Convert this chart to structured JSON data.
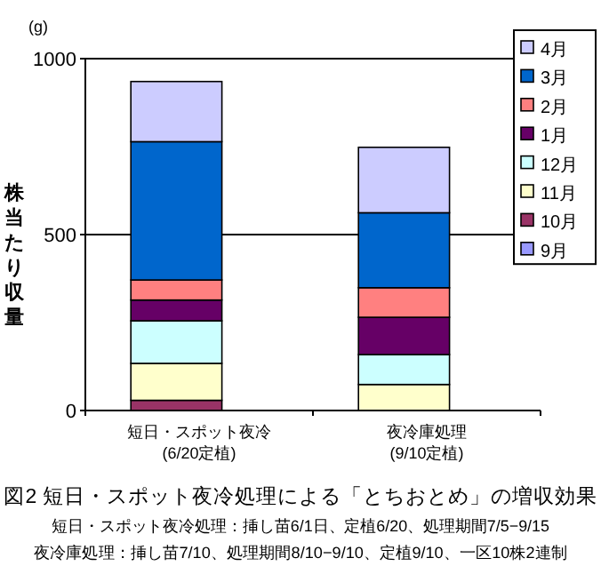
{
  "chart_data": {
    "type": "bar",
    "stacked": true,
    "title": "図2 短日・スポット夜冷処理による「とちおとめ」の増収効果",
    "ylabel": "株当たり収量",
    "annotations": [
      "(g)",
      "短日・スポット夜冷処理：挿し苗6/1日、定植6/20、処理期間7/5−9/15",
      "夜冷庫処理：挿し苗7/10、処理期間8/10−9/10、定植9/10、一区10株2連制"
    ],
    "categories": [
      "短日・スポット夜冷\n(6/20定植)",
      "夜冷庫処理\n(9/10定植)"
    ],
    "ylim": [
      0,
      1000
    ],
    "yticks": [
      0,
      500,
      1000
    ],
    "grid": "y",
    "legend": "top right",
    "series": [
      {
        "name": "9月",
        "color": "#9999ff",
        "values": [
          0,
          0
        ]
      },
      {
        "name": "10月",
        "color": "#993366",
        "values": [
          29,
          0
        ]
      },
      {
        "name": "11月",
        "color": "#ffffcc",
        "values": [
          105,
          74
        ]
      },
      {
        "name": "12月",
        "color": "#ccffff",
        "values": [
          121,
          85
        ]
      },
      {
        "name": "1月",
        "color": "#660066",
        "values": [
          59,
          106
        ]
      },
      {
        "name": "2月",
        "color": "#ff8080",
        "values": [
          57,
          84
        ]
      },
      {
        "name": "3月",
        "color": "#0066cc",
        "values": [
          393,
          213
        ]
      },
      {
        "name": "4月",
        "color": "#ccccff",
        "values": [
          171,
          186
        ]
      }
    ]
  }
}
